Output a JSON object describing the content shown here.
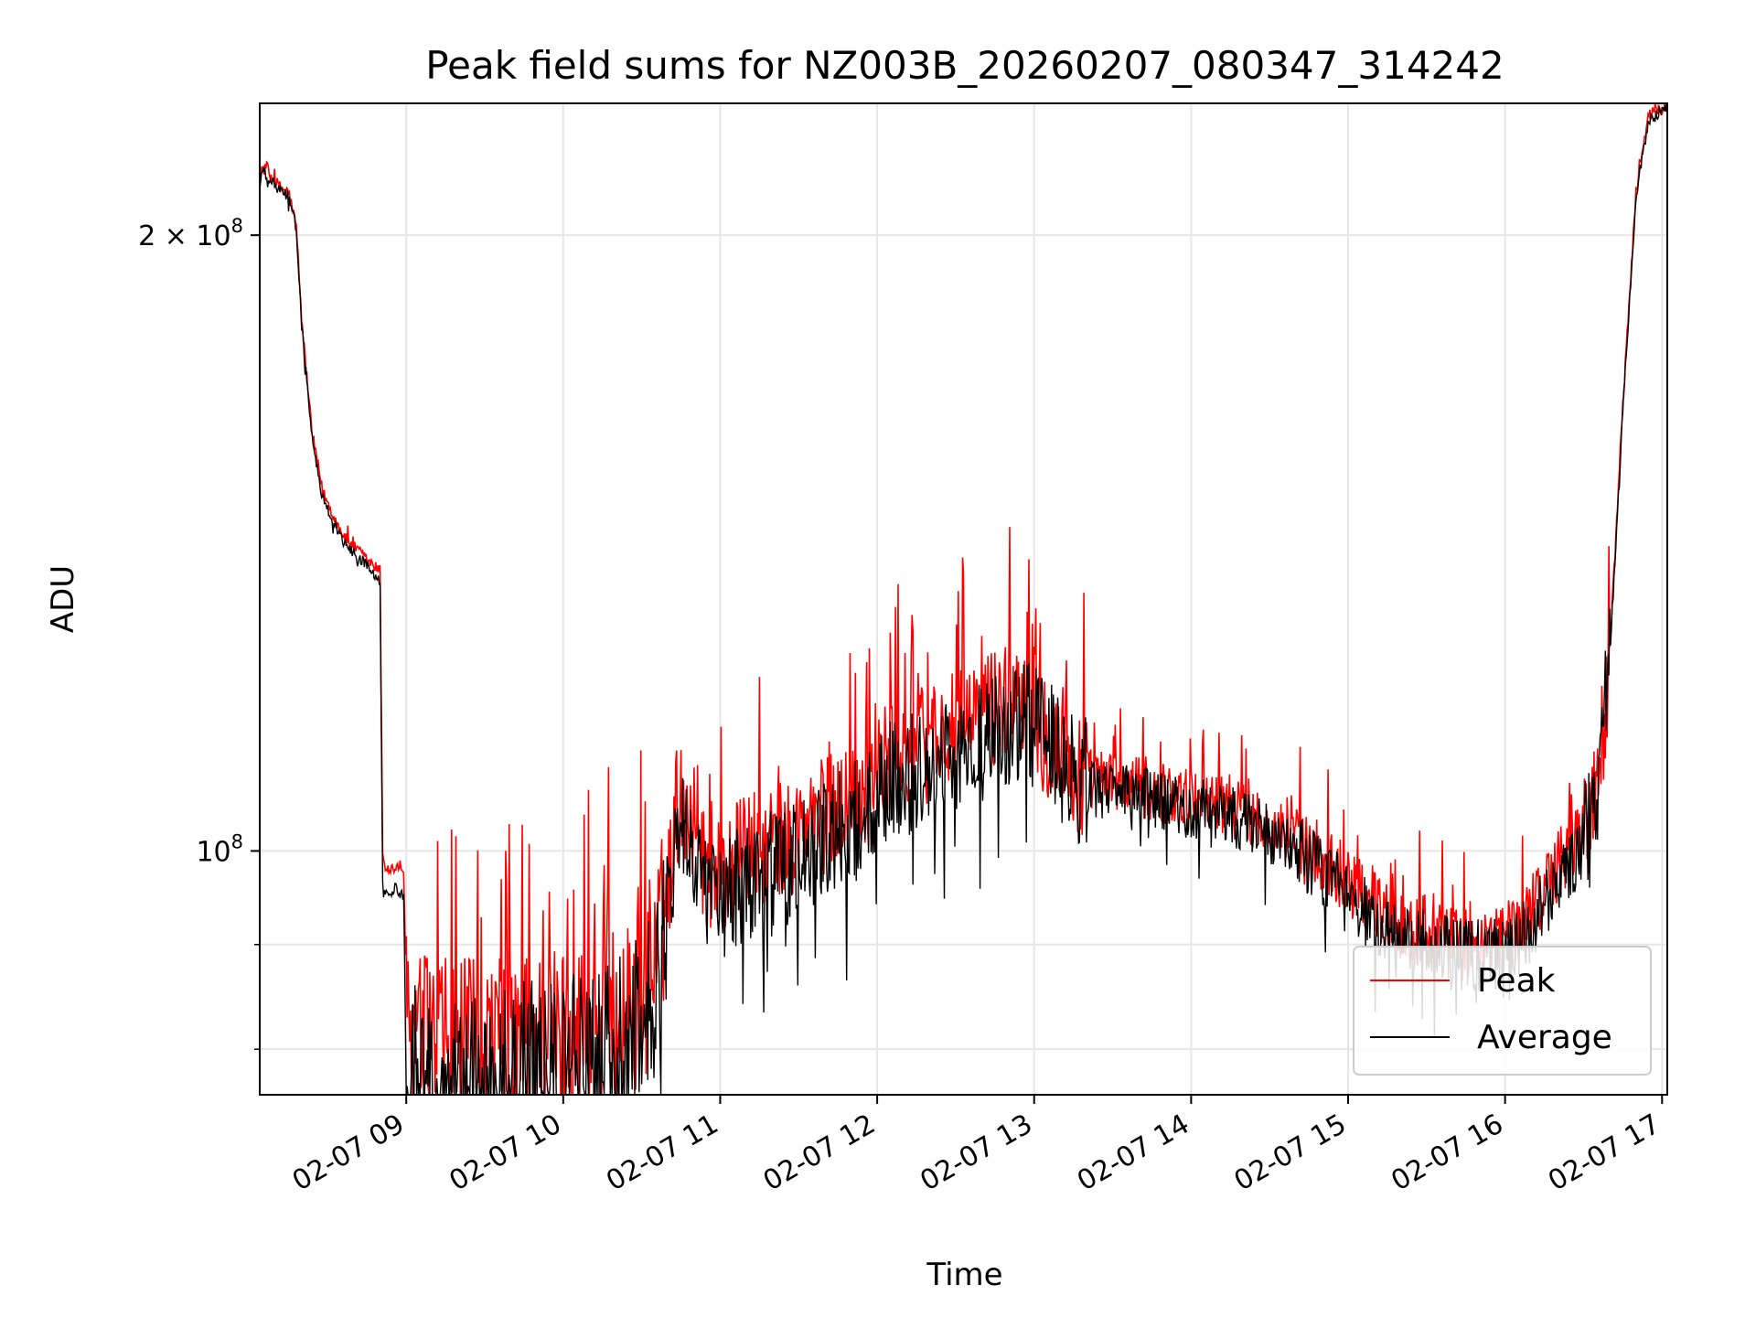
{
  "chart_data": {
    "type": "line",
    "title": "Peak field sums for NZ003B_20260207_080347_314242",
    "xlabel": "Time",
    "ylabel": "ADU",
    "x_axis": {
      "kind": "time",
      "range": [
        "02-07 08:04",
        "02-07 17:02"
      ],
      "ticks": [
        "02-07 09",
        "02-07 10",
        "02-07 11",
        "02-07 12",
        "02-07 13",
        "02-07 14",
        "02-07 15",
        "02-07 16",
        "02-07 17"
      ],
      "tick_label_rotation_deg": 30
    },
    "y_axis": {
      "scale": "log",
      "range": [
        76000000,
        232000000
      ],
      "major_ticks": [
        {
          "value": 100000000,
          "label_base": "10",
          "label_exp": "8"
        },
        {
          "value": 200000000,
          "label_base": "2 × 10",
          "label_exp": "8"
        }
      ],
      "minor_ticks": [
        80000000,
        90000000
      ]
    },
    "grid": true,
    "legend": {
      "placement": "lower-right",
      "entries": [
        "Peak",
        "Average"
      ]
    },
    "series": [
      {
        "name": "Peak",
        "color": "#ff0000",
        "x": [
          "08:04",
          "08:05",
          "08:12",
          "08:15",
          "08:18",
          "08:20",
          "08:24",
          "08:28",
          "08:33",
          "08:37",
          "08:42",
          "08:47",
          "08:50",
          "08:51",
          "08:52",
          "08:56",
          "08:59",
          "09:00",
          "09:01",
          "09:15",
          "09:30",
          "09:50",
          "10:10",
          "10:25",
          "10:35",
          "10:40",
          "10:43",
          "10:46",
          "10:50",
          "10:55",
          "11:00",
          "11:10",
          "11:25",
          "11:40",
          "11:55",
          "12:05",
          "12:20",
          "12:35",
          "12:45",
          "12:55",
          "13:00",
          "13:05",
          "13:15",
          "13:30",
          "13:45",
          "14:00",
          "14:15",
          "14:30",
          "14:45",
          "15:00",
          "15:15",
          "15:25",
          "15:30",
          "15:40",
          "15:55",
          "16:05",
          "16:15",
          "16:25",
          "16:35",
          "16:40",
          "16:45",
          "16:50",
          "16:55",
          "17:02"
        ],
        "y": [
          212000000,
          216000000,
          211000000,
          210000000,
          202000000,
          182000000,
          160000000,
          150000000,
          145000000,
          142000000,
          140000000,
          138000000,
          137000000,
          100000000,
          98000000,
          98000000,
          98000000,
          84000000,
          81000000,
          80000000,
          80000000,
          81000000,
          82000000,
          83000000,
          87000000,
          96000000,
          105000000,
          106000000,
          103000000,
          98000000,
          97000000,
          100000000,
          101000000,
          104000000,
          107000000,
          111000000,
          113000000,
          115000000,
          118000000,
          120000000,
          119000000,
          114000000,
          109000000,
          108000000,
          107000000,
          106000000,
          105000000,
          103000000,
          100000000,
          97000000,
          93000000,
          91000000,
          92000000,
          90000000,
          90000000,
          92000000,
          96000000,
          100000000,
          106000000,
          125000000,
          165000000,
          210000000,
          229000000,
          231000000
        ]
      },
      {
        "name": "Average",
        "color": "#000000",
        "x": [
          "08:04",
          "08:05",
          "08:12",
          "08:15",
          "08:18",
          "08:20",
          "08:24",
          "08:28",
          "08:33",
          "08:37",
          "08:42",
          "08:47",
          "08:50",
          "08:51",
          "08:52",
          "08:56",
          "08:59",
          "09:00",
          "09:01",
          "09:15",
          "09:30",
          "09:50",
          "10:10",
          "10:25",
          "10:35",
          "10:40",
          "10:43",
          "10:46",
          "10:50",
          "10:55",
          "11:00",
          "11:10",
          "11:25",
          "11:40",
          "11:55",
          "12:05",
          "12:20",
          "12:35",
          "12:45",
          "12:55",
          "13:00",
          "13:05",
          "13:15",
          "13:30",
          "13:45",
          "14:00",
          "14:15",
          "14:30",
          "14:45",
          "15:00",
          "15:15",
          "15:25",
          "15:30",
          "15:40",
          "15:55",
          "16:05",
          "16:15",
          "16:25",
          "16:35",
          "16:40",
          "16:45",
          "16:50",
          "16:55",
          "17:02"
        ],
        "y": [
          211000000,
          215000000,
          210000000,
          209000000,
          201000000,
          181000000,
          159000000,
          149000000,
          144000000,
          141000000,
          139000000,
          137000000,
          136000000,
          96000000,
          95000000,
          96000000,
          95000000,
          78000000,
          78000000,
          77500000,
          77500000,
          78000000,
          79000000,
          80500000,
          85000000,
          93000000,
          102000000,
          104000000,
          100000000,
          95000000,
          94000000,
          97000000,
          98000000,
          101000000,
          104000000,
          108000000,
          110000000,
          112000000,
          114000000,
          116000000,
          115000000,
          112000000,
          108000000,
          107000000,
          106000000,
          105000000,
          104000000,
          102000000,
          99000000,
          95000000,
          91000000,
          89500000,
          90000000,
          89000000,
          89000000,
          90000000,
          94000000,
          98000000,
          104000000,
          124000000,
          164000000,
          209000000,
          228000000,
          231000000
        ]
      }
    ]
  }
}
